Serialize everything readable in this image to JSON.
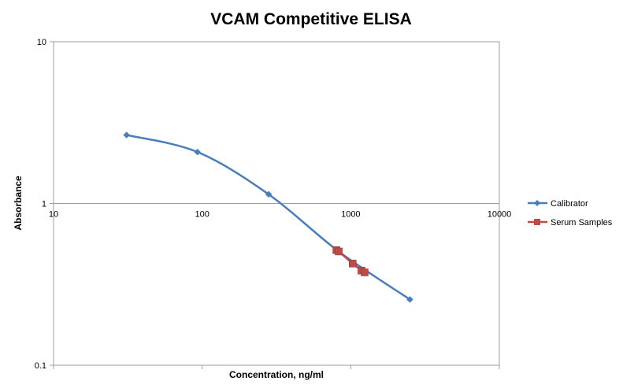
{
  "chart_data": {
    "type": "line",
    "title": "VCAM Competitive ELISA",
    "xlabel": "Concentration, ng/ml",
    "ylabel": "Absorbance",
    "x_scale": "log",
    "y_scale": "log",
    "xlim": [
      10,
      10000
    ],
    "ylim": [
      0.1,
      10
    ],
    "x_ticks": [
      "10",
      "100",
      "1000",
      "10000"
    ],
    "y_ticks": [
      "0.1",
      "1",
      "10"
    ],
    "grid": "horizontal major gridlines",
    "legend_position": "right",
    "series": [
      {
        "name": "Calibrator",
        "color": "#4a7ebb",
        "marker": "diamond",
        "smooth": true,
        "points": [
          {
            "x": 31,
            "y": 2.65
          },
          {
            "x": 93,
            "y": 2.08
          },
          {
            "x": 280,
            "y": 1.14
          },
          {
            "x": 830,
            "y": 0.505
          },
          {
            "x": 2500,
            "y": 0.255
          }
        ]
      },
      {
        "name": "Serum Samples",
        "color": "#be4b48",
        "marker": "square",
        "smooth": false,
        "points": [
          {
            "x": 800,
            "y": 0.515
          },
          {
            "x": 830,
            "y": 0.505
          },
          {
            "x": 1030,
            "y": 0.425
          },
          {
            "x": 1180,
            "y": 0.385
          },
          {
            "x": 1240,
            "y": 0.375
          }
        ]
      }
    ]
  }
}
